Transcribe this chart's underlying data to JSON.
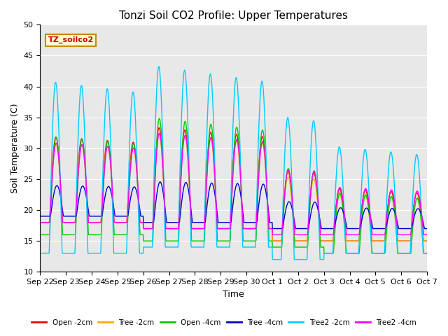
{
  "title": "Tonzi Soil CO2 Profile: Upper Temperatures",
  "xlabel": "Time",
  "ylabel": "Soil Temperature (C)",
  "ylim": [
    10,
    50
  ],
  "bg_color": "#e8e8e8",
  "annotation_text": "TZ_soilco2",
  "annotation_bg": "#ffffcc",
  "annotation_border": "#cc8800",
  "annotation_text_color": "#cc0000",
  "series": [
    {
      "label": "Open -2cm",
      "color": "#ff0000"
    },
    {
      "label": "Tree -2cm",
      "color": "#ffaa00"
    },
    {
      "label": "Open -4cm",
      "color": "#00cc00"
    },
    {
      "label": "Tree -4cm",
      "color": "#0000cc"
    },
    {
      "label": "Tree2 -2cm",
      "color": "#00ccff"
    },
    {
      "label": "Tree2 -4cm",
      "color": "#ff00ff"
    }
  ],
  "tick_labels": [
    "Sep 22",
    "Sep 23",
    "Sep 24",
    "Sep 25",
    "Sep 26",
    "Sep 27",
    "Sep 28",
    "Sep 29",
    "Sep 30",
    "Oct 1",
    "Oct 2",
    "Oct 3",
    "Oct 4",
    "Oct 5",
    "Oct 6",
    "Oct 7"
  ],
  "n_days": 15,
  "pts_per_day": 96,
  "figsize": [
    6.4,
    4.8
  ],
  "dpi": 100
}
